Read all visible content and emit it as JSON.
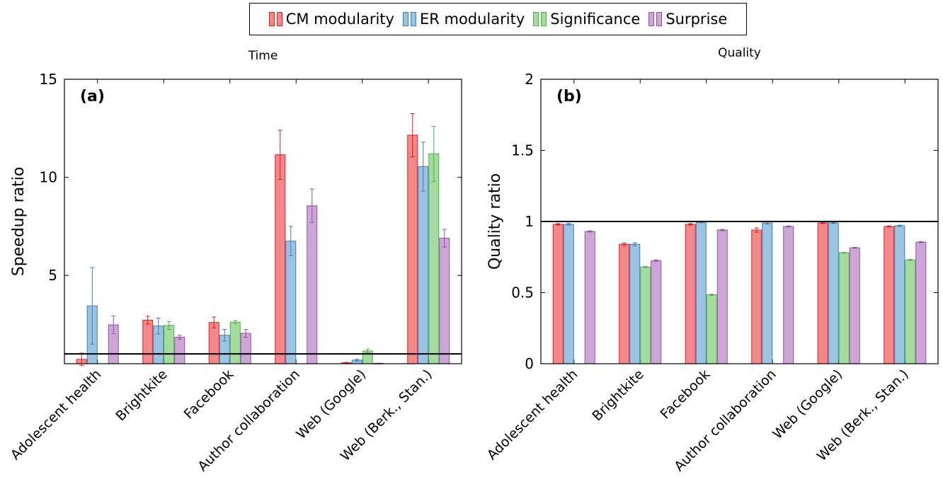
{
  "legend": [
    {
      "name": "CM modularity",
      "fill": "#f4888b",
      "stroke": "#e41a1c"
    },
    {
      "name": "ER modularity",
      "fill": "#9dc3e2",
      "stroke": "#377eb8"
    },
    {
      "name": "Significance",
      "fill": "#a6dba0",
      "stroke": "#4daf4a"
    },
    {
      "name": "Surprise",
      "fill": "#cba6d6",
      "stroke": "#984ea3"
    }
  ],
  "chart_data": [
    {
      "type": "bar",
      "title": "Time",
      "panel_label": "(a)",
      "ylabel": "Speedup ratio",
      "xlabel": "",
      "ylim": [
        0.5,
        15
      ],
      "yticks": [
        "5",
        "10",
        "15"
      ],
      "ytick_values": [
        5,
        10,
        15
      ],
      "reference_line": 1,
      "categories": [
        "Adolescent health",
        "Brightkite",
        "Facebook",
        "Author collaboration",
        "Web (Google)",
        "Web (Berk., Stan.)"
      ],
      "series": [
        {
          "name": "CM modularity",
          "values": [
            0.72,
            2.72,
            2.6,
            11.15,
            0.55,
            12.15
          ],
          "errors": [
            0.32,
            0.2,
            0.28,
            1.25,
            0.02,
            1.1
          ]
        },
        {
          "name": "ER modularity",
          "values": [
            3.45,
            2.42,
            1.95,
            6.75,
            0.68,
            10.55
          ],
          "errors": [
            1.95,
            0.4,
            0.3,
            0.75,
            0.05,
            1.25
          ]
        },
        {
          "name": "Significance",
          "values": [
            null,
            2.45,
            2.62,
            null,
            1.15,
            11.2
          ],
          "errors": [
            null,
            0.2,
            0.08,
            null,
            0.1,
            1.4
          ]
        },
        {
          "name": "Surprise",
          "values": [
            2.48,
            1.85,
            2.05,
            8.55,
            0.52,
            6.9
          ],
          "errors": [
            0.45,
            0.1,
            0.2,
            0.85,
            0.01,
            0.45
          ]
        }
      ]
    },
    {
      "type": "bar",
      "title": "Quality",
      "panel_label": "(b)",
      "ylabel": "Quality ratio",
      "xlabel": "",
      "ylim": [
        0,
        2
      ],
      "yticks": [
        "0",
        "0.5",
        "1",
        "1.5",
        "2"
      ],
      "ytick_values": [
        0,
        0.5,
        1,
        1.5,
        2
      ],
      "reference_line": 1,
      "categories": [
        "Adolescent health",
        "Brightkite",
        "Facebook",
        "Author collaboration",
        "Web (Google)",
        "Web (Berk., Stan.)"
      ],
      "series": [
        {
          "name": "CM modularity",
          "values": [
            0.98,
            0.84,
            0.98,
            0.94,
            0.99,
            0.965
          ],
          "errors": [
            0.005,
            0.008,
            0.005,
            0.015,
            0.004,
            0.004
          ]
        },
        {
          "name": "ER modularity",
          "values": [
            0.98,
            0.84,
            0.995,
            0.99,
            0.99,
            0.97
          ],
          "errors": [
            0.006,
            0.01,
            0.004,
            0.008,
            0.004,
            0.004
          ]
        },
        {
          "name": "Significance",
          "values": [
            null,
            0.68,
            0.485,
            null,
            0.78,
            0.73
          ],
          "errors": [
            null,
            0.004,
            0.004,
            null,
            0.003,
            0.004
          ]
        },
        {
          "name": "Surprise",
          "values": [
            0.93,
            0.725,
            0.94,
            0.965,
            0.815,
            0.855
          ],
          "errors": [
            0.004,
            0.006,
            0.004,
            0.004,
            0.003,
            0.004
          ]
        }
      ]
    }
  ]
}
